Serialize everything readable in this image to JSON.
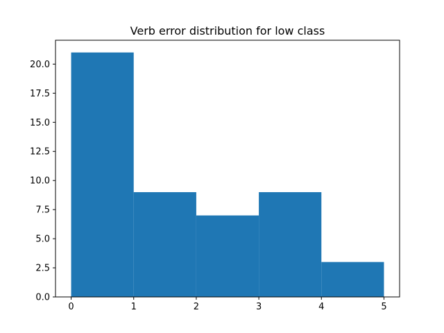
{
  "chart_data": {
    "type": "bar",
    "subtype": "histogram",
    "title": "Verb error distribution for low class",
    "xlabel": "",
    "ylabel": "",
    "bins": [
      {
        "x0": 0,
        "x1": 1,
        "count": 21
      },
      {
        "x0": 1,
        "x1": 2,
        "count": 9
      },
      {
        "x0": 2,
        "x1": 3,
        "count": 7
      },
      {
        "x0": 3,
        "x1": 4,
        "count": 9
      },
      {
        "x0": 4,
        "x1": 5,
        "count": 3
      }
    ],
    "xlim": [
      -0.25,
      5.25
    ],
    "ylim": [
      0,
      22.05
    ],
    "xticks": [
      0,
      1,
      2,
      3,
      4,
      5
    ],
    "xtick_labels": [
      "0",
      "1",
      "2",
      "3",
      "4",
      "5"
    ],
    "yticks": [
      0,
      2.5,
      5,
      7.5,
      10,
      12.5,
      15,
      17.5,
      20
    ],
    "ytick_labels": [
      "0.0",
      "2.5",
      "5.0",
      "7.5",
      "10.0",
      "12.5",
      "15.0",
      "17.5",
      "20.0"
    ],
    "grid": false,
    "legend": "none",
    "bar_color": "#1f77b4"
  }
}
